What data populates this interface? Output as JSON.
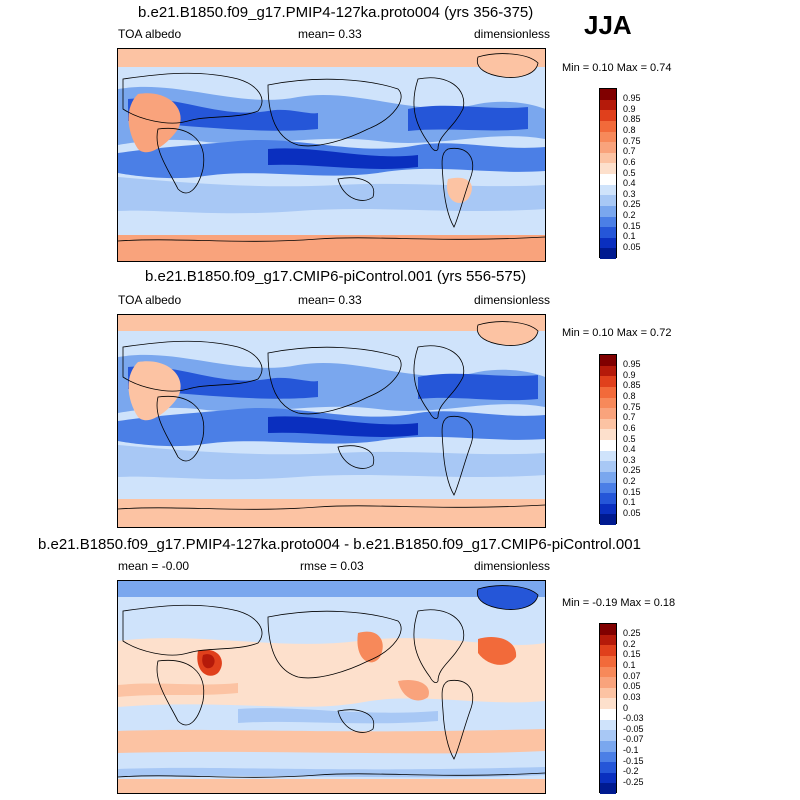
{
  "season": "JJA",
  "panels": [
    {
      "title": "b.e21.B1850.f09_g17.PMIP4-127ka.proto004 (yrs 356-375)",
      "left_label": "TOA albedo",
      "mid_label": "mean=   0.33",
      "right_label": "dimensionless",
      "minmax": "Min =   0.10 Max =   0.74",
      "colorbar": {
        "labels": [
          "0.95",
          "0.9",
          "0.85",
          "0.8",
          "0.75",
          "0.7",
          "0.6",
          "0.5",
          "0.4",
          "0.3",
          "0.25",
          "0.2",
          "0.15",
          "0.1",
          "0.05"
        ],
        "colors": [
          "#800000",
          "#b51a0a",
          "#e0401c",
          "#f26a3a",
          "#f7895a",
          "#f9a37c",
          "#fcc3a3",
          "#fde0cc",
          "#ffffff",
          "#cfe3fb",
          "#a8c8f5",
          "#7aa7ee",
          "#4b7fe6",
          "#2556d8",
          "#0a2fbf",
          "#001a90"
        ]
      }
    },
    {
      "title": "b.e21.B1850.f09_g17.CMIP6-piControl.001 (yrs 556-575)",
      "left_label": "TOA albedo",
      "mid_label": "mean=   0.33",
      "right_label": "dimensionless",
      "minmax": "Min =   0.10 Max =   0.72",
      "colorbar": {
        "labels": [
          "0.95",
          "0.9",
          "0.85",
          "0.8",
          "0.75",
          "0.7",
          "0.6",
          "0.5",
          "0.4",
          "0.3",
          "0.25",
          "0.2",
          "0.15",
          "0.1",
          "0.05"
        ],
        "colors": [
          "#800000",
          "#b51a0a",
          "#e0401c",
          "#f26a3a",
          "#f7895a",
          "#f9a37c",
          "#fcc3a3",
          "#fde0cc",
          "#ffffff",
          "#cfe3fb",
          "#a8c8f5",
          "#7aa7ee",
          "#4b7fe6",
          "#2556d8",
          "#0a2fbf",
          "#001a90"
        ]
      }
    },
    {
      "title": "b.e21.B1850.f09_g17.PMIP4-127ka.proto004 - b.e21.B1850.f09_g17.CMIP6-piControl.001",
      "left_label": "mean =   -0.00",
      "mid_label": "rmse =   0.03",
      "right_label": "dimensionless",
      "minmax": "Min =  -0.19 Max =   0.18",
      "colorbar": {
        "labels": [
          "0.25",
          "0.2",
          "0.15",
          "0.1",
          "0.07",
          "0.05",
          "0.03",
          "0",
          "-0.03",
          "-0.05",
          "-0.07",
          "-0.1",
          "-0.15",
          "-0.2",
          "-0.25"
        ],
        "colors": [
          "#800000",
          "#b51a0a",
          "#e0401c",
          "#f26a3a",
          "#f7895a",
          "#f9a37c",
          "#fcc3a3",
          "#fde0cc",
          "#ffffff",
          "#cfe3fb",
          "#a8c8f5",
          "#7aa7ee",
          "#4b7fe6",
          "#2556d8",
          "#0a2fbf",
          "#001a90"
        ]
      }
    }
  ]
}
